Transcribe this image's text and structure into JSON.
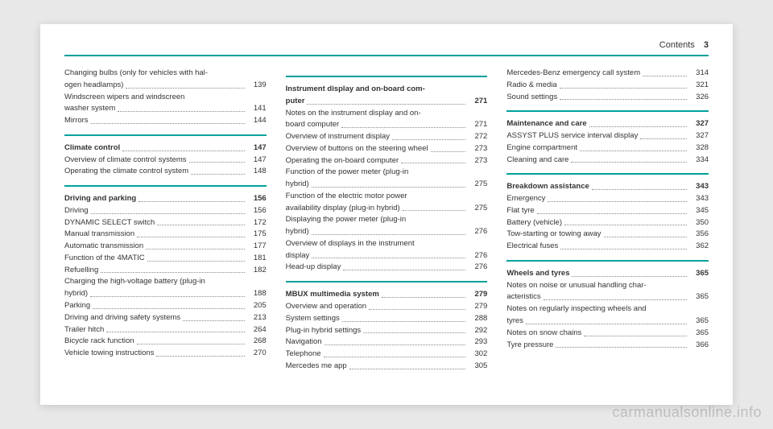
{
  "header": {
    "title": "Contents",
    "page": "3"
  },
  "watermark": "carmanualsonline.info",
  "columns": [
    {
      "groups": [
        {
          "rule": false,
          "entries": [
            {
              "label": "Changing bulbs (only for vehicles with hal-\nogen headlamps)",
              "page": "139"
            },
            {
              "label": "Windscreen wipers and windscreen\nwasher system",
              "page": "141"
            },
            {
              "label": "Mirrors",
              "page": "144"
            }
          ]
        },
        {
          "rule": true,
          "entries": [
            {
              "label": "Climate control",
              "page": "147",
              "bold": true
            },
            {
              "label": "Overview of climate control systems",
              "page": "147"
            },
            {
              "label": "Operating the climate control system",
              "page": "148"
            }
          ]
        },
        {
          "rule": true,
          "entries": [
            {
              "label": "Driving and parking",
              "page": "156",
              "bold": true
            },
            {
              "label": "Driving",
              "page": "156"
            },
            {
              "label": "DYNAMIC SELECT switch",
              "page": "172"
            },
            {
              "label": "Manual transmission",
              "page": "175"
            },
            {
              "label": "Automatic transmission",
              "page": "177"
            },
            {
              "label": "Function of the 4MATIC",
              "page": "181"
            },
            {
              "label": "Refuelling",
              "page": "182"
            },
            {
              "label": "Charging the high-voltage battery (plug-in\nhybrid)",
              "page": "188"
            },
            {
              "label": "Parking",
              "page": "205"
            },
            {
              "label": "Driving and driving safety systems",
              "page": "213"
            },
            {
              "label": "Trailer hitch",
              "page": "264"
            },
            {
              "label": "Bicycle rack function",
              "page": "268"
            },
            {
              "label": "Vehicle towing instructions",
              "page": "270"
            }
          ]
        }
      ]
    },
    {
      "groups": [
        {
          "rule": true,
          "entries": [
            {
              "label": "Instrument display and on-board com-\nputer",
              "page": "271",
              "bold": true
            },
            {
              "label": "Notes on the instrument display and on-\nboard computer",
              "page": "271"
            },
            {
              "label": "Overview of instrument display",
              "page": "272"
            },
            {
              "label": "Overview of buttons on the steering wheel",
              "page": "273"
            },
            {
              "label": "Operating the on-board computer",
              "page": "273"
            },
            {
              "label": "Function of the power meter (plug-in\nhybrid)",
              "page": "275"
            },
            {
              "label": "Function of the electric motor power\navailability display (plug-in hybrid)",
              "page": "275"
            },
            {
              "label": "Displaying the power meter (plug-in\nhybrid)",
              "page": "276"
            },
            {
              "label": "Overview of displays in the instrument\ndisplay",
              "page": "276"
            },
            {
              "label": "Head-up display",
              "page": "276"
            }
          ]
        },
        {
          "rule": true,
          "entries": [
            {
              "label": "MBUX multimedia system",
              "page": "279",
              "bold": true
            },
            {
              "label": "Overview and operation",
              "page": "279"
            },
            {
              "label": "System settings",
              "page": "288"
            },
            {
              "label": "Plug-in hybrid settings",
              "page": "292"
            },
            {
              "label": "Navigation",
              "page": "293"
            },
            {
              "label": "Telephone",
              "page": "302"
            },
            {
              "label": "Mercedes me app",
              "page": "305"
            }
          ]
        }
      ]
    },
    {
      "groups": [
        {
          "rule": false,
          "entries": [
            {
              "label": "Mercedes-Benz emergency call system",
              "page": "314"
            },
            {
              "label": "Radio & media",
              "page": "321"
            },
            {
              "label": "Sound settings",
              "page": "326"
            }
          ]
        },
        {
          "rule": true,
          "entries": [
            {
              "label": "Maintenance and care",
              "page": "327",
              "bold": true
            },
            {
              "label": "ASSYST PLUS service interval display",
              "page": "327"
            },
            {
              "label": "Engine compartment",
              "page": "328"
            },
            {
              "label": "Cleaning and care",
              "page": "334"
            }
          ]
        },
        {
          "rule": true,
          "entries": [
            {
              "label": "Breakdown assistance",
              "page": "343",
              "bold": true
            },
            {
              "label": "Emergency",
              "page": "343"
            },
            {
              "label": "Flat tyre",
              "page": "345"
            },
            {
              "label": "Battery (vehicle)",
              "page": "350"
            },
            {
              "label": "Tow-starting or towing away",
              "page": "356"
            },
            {
              "label": "Electrical fuses",
              "page": "362"
            }
          ]
        },
        {
          "rule": true,
          "entries": [
            {
              "label": "Wheels and tyres",
              "page": "365",
              "bold": true
            },
            {
              "label": "Notes on noise or unusual handling char-\nacteristics",
              "page": "365"
            },
            {
              "label": "Notes on regularly inspecting wheels and\ntyres",
              "page": "365"
            },
            {
              "label": "Notes on snow chains",
              "page": "365"
            },
            {
              "label": "Tyre pressure",
              "page": "366"
            }
          ]
        }
      ]
    }
  ]
}
